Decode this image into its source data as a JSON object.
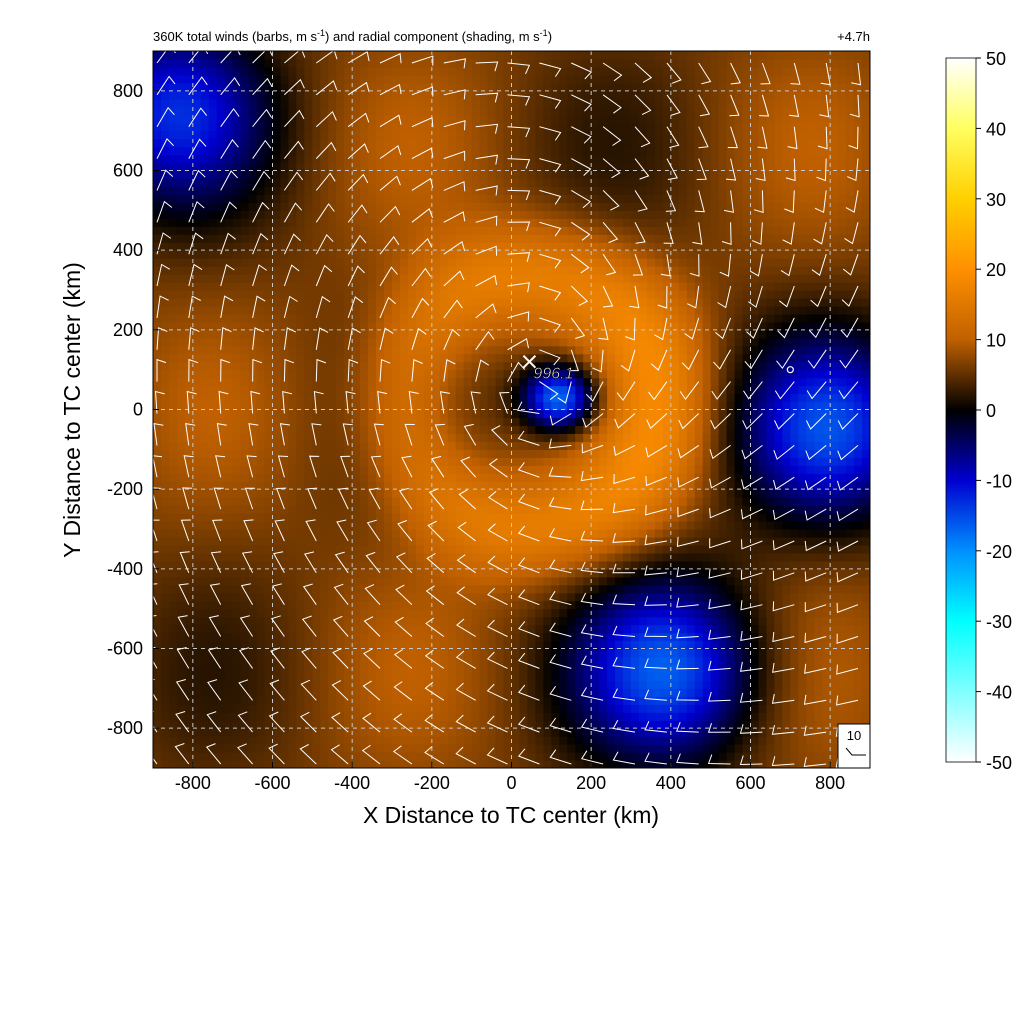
{
  "chart_data": {
    "type": "heatmap",
    "title_left": "360K total winds (barbs, m s",
    "title_left_sup1": "-1",
    "title_left_mid": ") and radial component (shading, m s",
    "title_left_sup2": "-1",
    "title_left_end": ")",
    "title_right": "+4.7h",
    "xlabel": "X Distance to TC center (km)",
    "ylabel": "Y Distance to TC center (km)",
    "xlim": [
      -900,
      900
    ],
    "ylim": [
      -900,
      900
    ],
    "xticks": [
      -800,
      -600,
      -400,
      -200,
      0,
      200,
      400,
      600,
      800
    ],
    "yticks": [
      -800,
      -600,
      -400,
      -200,
      0,
      200,
      400,
      600,
      800
    ],
    "grid": true,
    "center_marker": {
      "x": 45,
      "y": 120,
      "label": "996.1"
    },
    "small_circle": {
      "x": 700,
      "y": 100
    },
    "barb_reference": {
      "label": "10"
    },
    "colorbar": {
      "min": -50,
      "max": 50,
      "ticks": [
        50,
        40,
        30,
        20,
        10,
        0,
        -10,
        -20,
        -30,
        -40,
        -50
      ],
      "colors": [
        "#ffffff",
        "#ffff00",
        "#ffa000",
        "#d87000",
        "#000000",
        "#0000c8",
        "#0060ff",
        "#00ffff",
        "#ffffff"
      ]
    },
    "field_features": {
      "background_radial_wind": 6,
      "inner_core": {
        "x": 120,
        "y": 30,
        "value": -12
      },
      "outflow_ring": {
        "radius": 320,
        "value": 10
      },
      "negative_regions": [
        {
          "x": 800,
          "y": -50,
          "value": -8
        },
        {
          "x": 400,
          "y": -650,
          "value": -10
        },
        {
          "x": -850,
          "y": 750,
          "value": -6
        }
      ]
    }
  }
}
